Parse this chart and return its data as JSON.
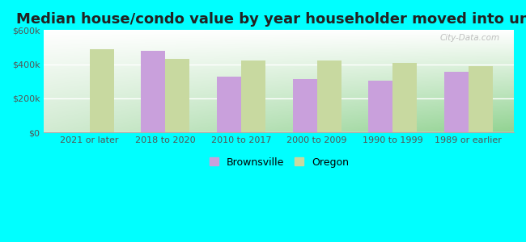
{
  "title": "Median house/condo value by year householder moved into unit",
  "categories": [
    "2021 or later",
    "2018 to 2020",
    "2010 to 2017",
    "2000 to 2009",
    "1990 to 1999",
    "1989 or earlier"
  ],
  "brownsville_values": [
    0,
    478000,
    325000,
    315000,
    305000,
    355000
  ],
  "oregon_values": [
    487000,
    432000,
    420000,
    420000,
    410000,
    388000
  ],
  "brownsville_color": "#c9a0dc",
  "oregon_color": "#c8d9a0",
  "outer_background": "#00ffff",
  "ylim": [
    0,
    600000
  ],
  "yticks": [
    0,
    200000,
    400000,
    600000
  ],
  "ytick_labels": [
    "$0",
    "$200k",
    "$400k",
    "$600k"
  ],
  "bar_width": 0.32,
  "legend_labels": [
    "Brownsville",
    "Oregon"
  ],
  "title_fontsize": 13,
  "tick_fontsize": 8,
  "watermark": "City-Data.com"
}
